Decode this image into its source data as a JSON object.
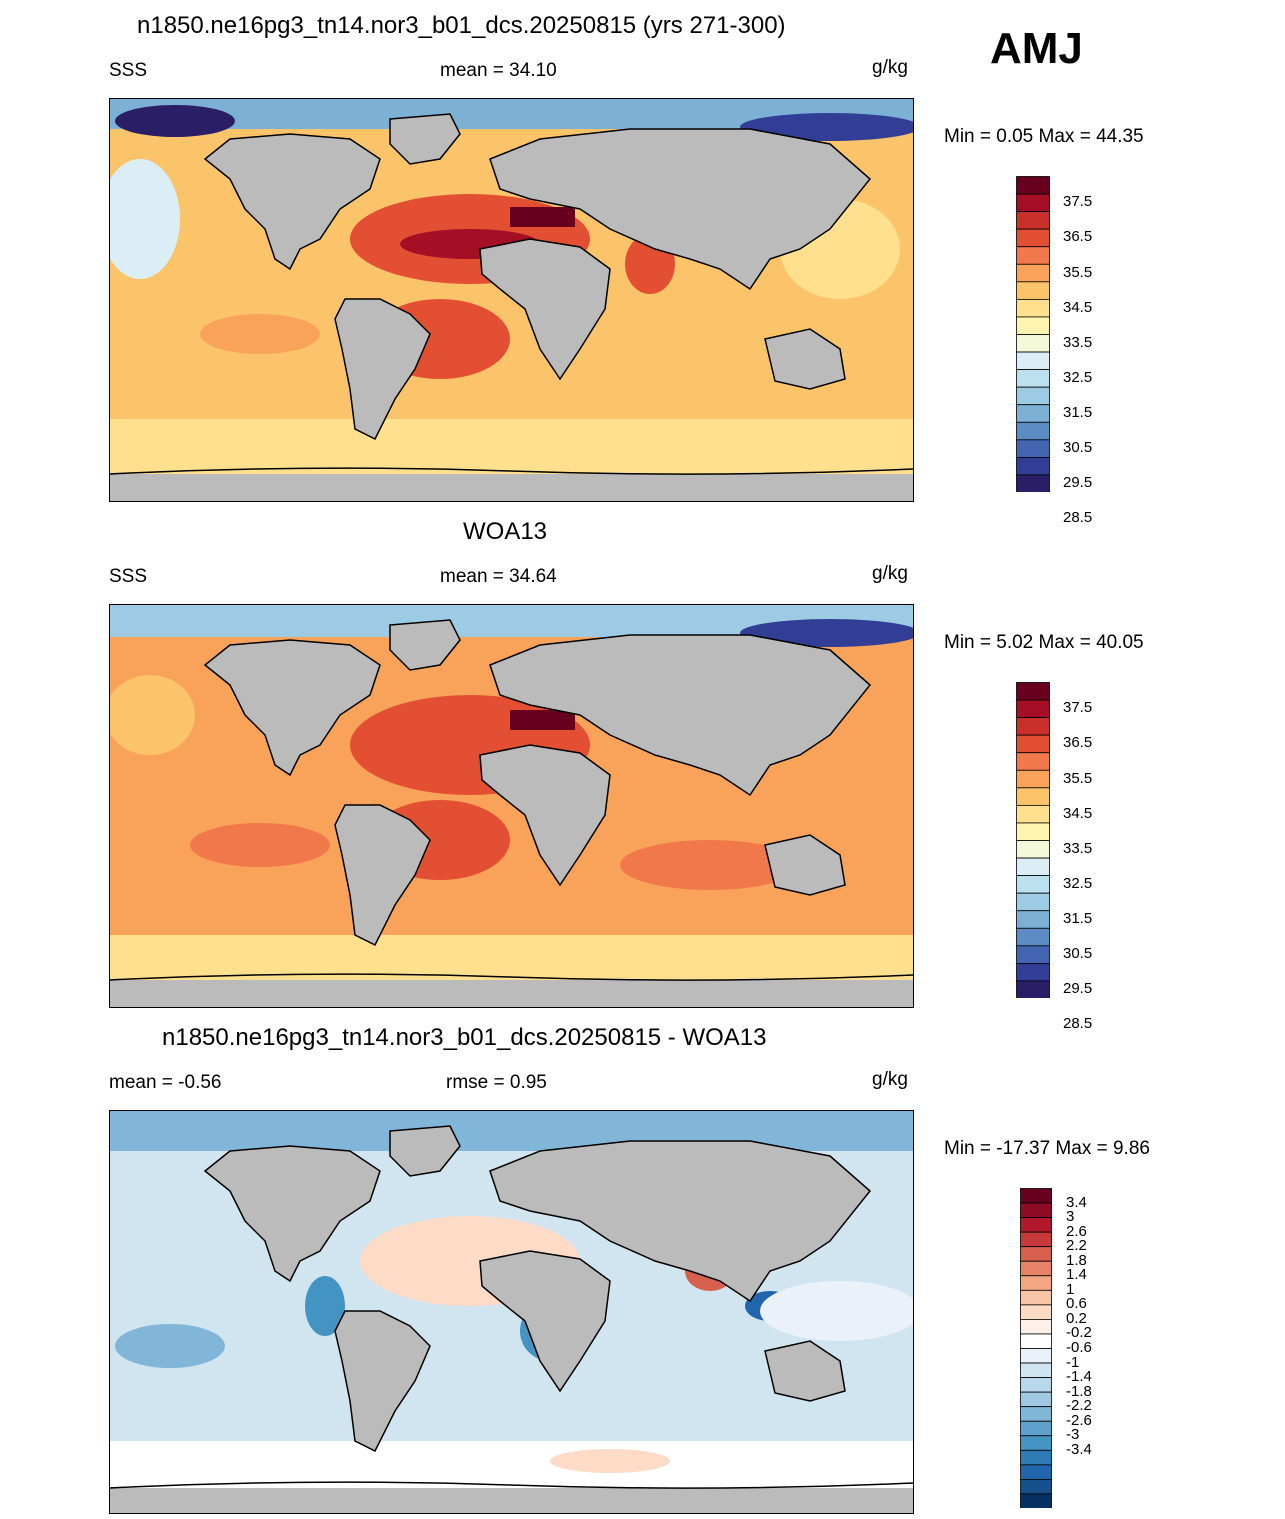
{
  "season": "AMJ",
  "panels": [
    {
      "title": "n1850.ne16pg3_tn14.nor3_b01_dcs.20250815 (yrs 271-300)",
      "left": "SSS",
      "center": "mean =  34.10",
      "units": "g/kg",
      "minmax": "Min =   0.05 Max =  44.35"
    },
    {
      "title": "WOA13",
      "left": "SSS",
      "center": "mean =  34.64",
      "units": "g/kg",
      "minmax": "Min =   5.02 Max =  40.05"
    },
    {
      "title": "n1850.ne16pg3_tn14.nor3_b01_dcs.20250815 - WOA13",
      "left": "mean =  -0.56",
      "center": "rmse =   0.95",
      "units": "g/kg",
      "minmax": "Min = -17.37 Max =   9.86"
    }
  ],
  "colorbars": {
    "sss_labels": [
      "37.5",
      "36.5",
      "35.5",
      "34.5",
      "33.5",
      "32.5",
      "31.5",
      "30.5",
      "29.5",
      "28.5"
    ],
    "sss_colors": [
      "#67001f",
      "#a50f25",
      "#c9302c",
      "#e34f32",
      "#f1784a",
      "#f9a35a",
      "#fcc46a",
      "#fee08e",
      "#fef4b0",
      "#f3f9d9",
      "#dbeef5",
      "#bde0ee",
      "#9ccbe3",
      "#7cb0d5",
      "#5c8cc3",
      "#4466b0",
      "#323e95",
      "#2a1f66"
    ],
    "diff_labels": [
      "3.4",
      "3",
      "2.6",
      "2.2",
      "1.8",
      "1.4",
      "1",
      "0.6",
      "0.2",
      "-0.2",
      "-0.6",
      "-1",
      "-1.4",
      "-1.8",
      "-2.2",
      "-2.6",
      "-3",
      "-3.4"
    ],
    "diff_colors": [
      "#67001f",
      "#8e0a25",
      "#b2182b",
      "#c83a3a",
      "#d6604d",
      "#e58268",
      "#f4a582",
      "#f8c4a8",
      "#fddbc7",
      "#fdf0e8",
      "#ffffff",
      "#eaf1f8",
      "#d1e5f0",
      "#b9d7ea",
      "#a0c8e3",
      "#82b6d9",
      "#5fa0cc",
      "#4393c3",
      "#2e7bb6",
      "#2166ac",
      "#164f8c",
      "#053061"
    ]
  }
}
